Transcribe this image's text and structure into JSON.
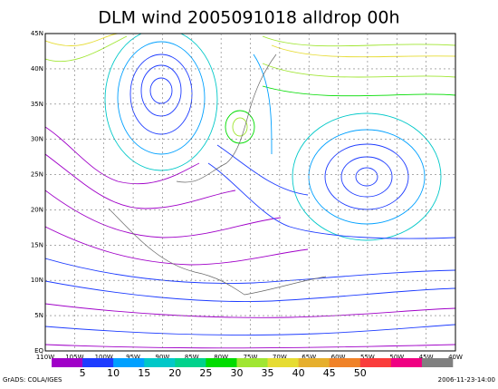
{
  "title": "DLM wind 2005091018 alldrop 00h",
  "lat_labels": [
    "45N",
    "40N",
    "35N",
    "30N",
    "25N",
    "20N",
    "15N",
    "10N",
    "5N",
    "EQ"
  ],
  "lon_labels": [
    "110W",
    "105W",
    "100W",
    "95W",
    "90W",
    "85W",
    "80W",
    "75W",
    "70W",
    "65W",
    "60W",
    "55W",
    "50W",
    "45W",
    "40W"
  ],
  "colorbar": {
    "colors": [
      "#a000c8",
      "#1e3cff",
      "#00a0ff",
      "#00c8c8",
      "#00d28c",
      "#00dc00",
      "#a0e632",
      "#e6dc32",
      "#e6af2d",
      "#f08228",
      "#fa3c3c",
      "#f00082",
      "#808080"
    ],
    "labels": [
      5,
      10,
      15,
      20,
      25,
      30,
      35,
      40,
      45,
      50
    ]
  },
  "footer_left": "GrADS: COLA/IGES",
  "footer_right": "2006-11-23-14:00"
}
